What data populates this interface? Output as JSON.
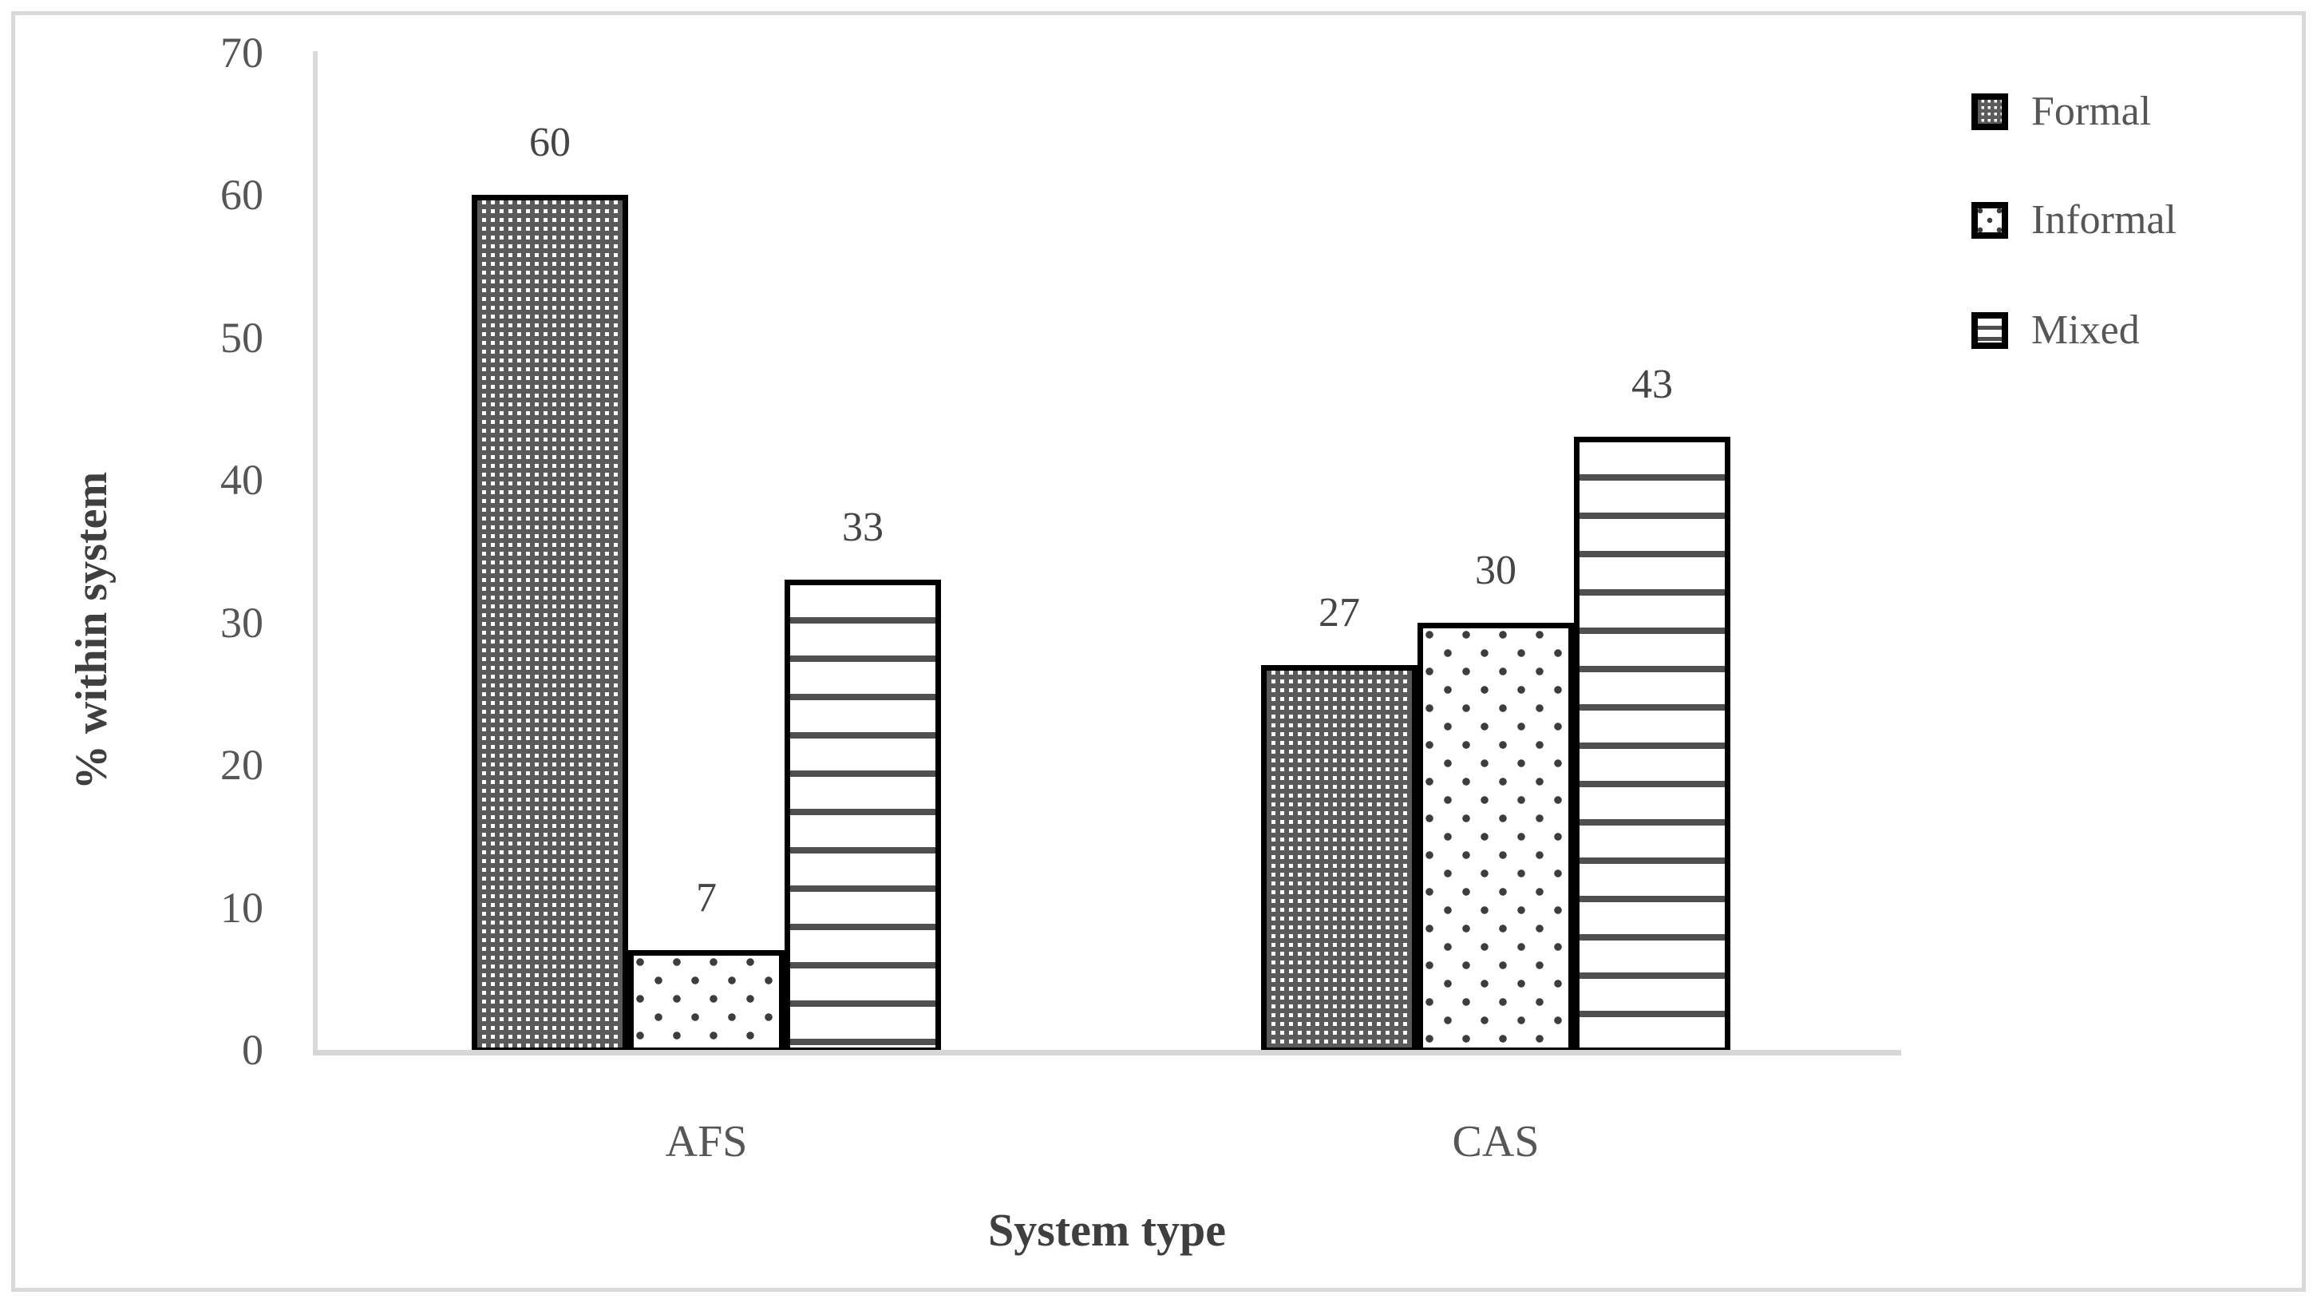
{
  "figure": {
    "kind": "grouped-bar-chart-figure",
    "background": "#ffffff",
    "frame_color": "#d9d9d9"
  },
  "chart_data": {
    "type": "bar",
    "title": "",
    "xlabel": "System type",
    "ylabel": "% within system",
    "categories": [
      "AFS",
      "CAS"
    ],
    "series": [
      {
        "name": "Formal",
        "pattern": "checker",
        "values": [
          60,
          27
        ]
      },
      {
        "name": "Informal",
        "pattern": "dots",
        "values": [
          7,
          30
        ]
      },
      {
        "name": "Mixed",
        "pattern": "hlines",
        "values": [
          33,
          43
        ]
      }
    ],
    "data_labels": [
      [
        60,
        27
      ],
      [
        7,
        30
      ],
      [
        33,
        43
      ]
    ],
    "ylim": [
      0,
      70
    ],
    "ytick_step": 10,
    "yticks": [
      0,
      10,
      20,
      30,
      40,
      50,
      60,
      70
    ],
    "grid": false,
    "legend_position": "right-top",
    "bar_outline_color": "#000000",
    "pattern_color": "#4f4f4f",
    "axis_color": "#d9d9d9",
    "text_color": "#565656"
  }
}
